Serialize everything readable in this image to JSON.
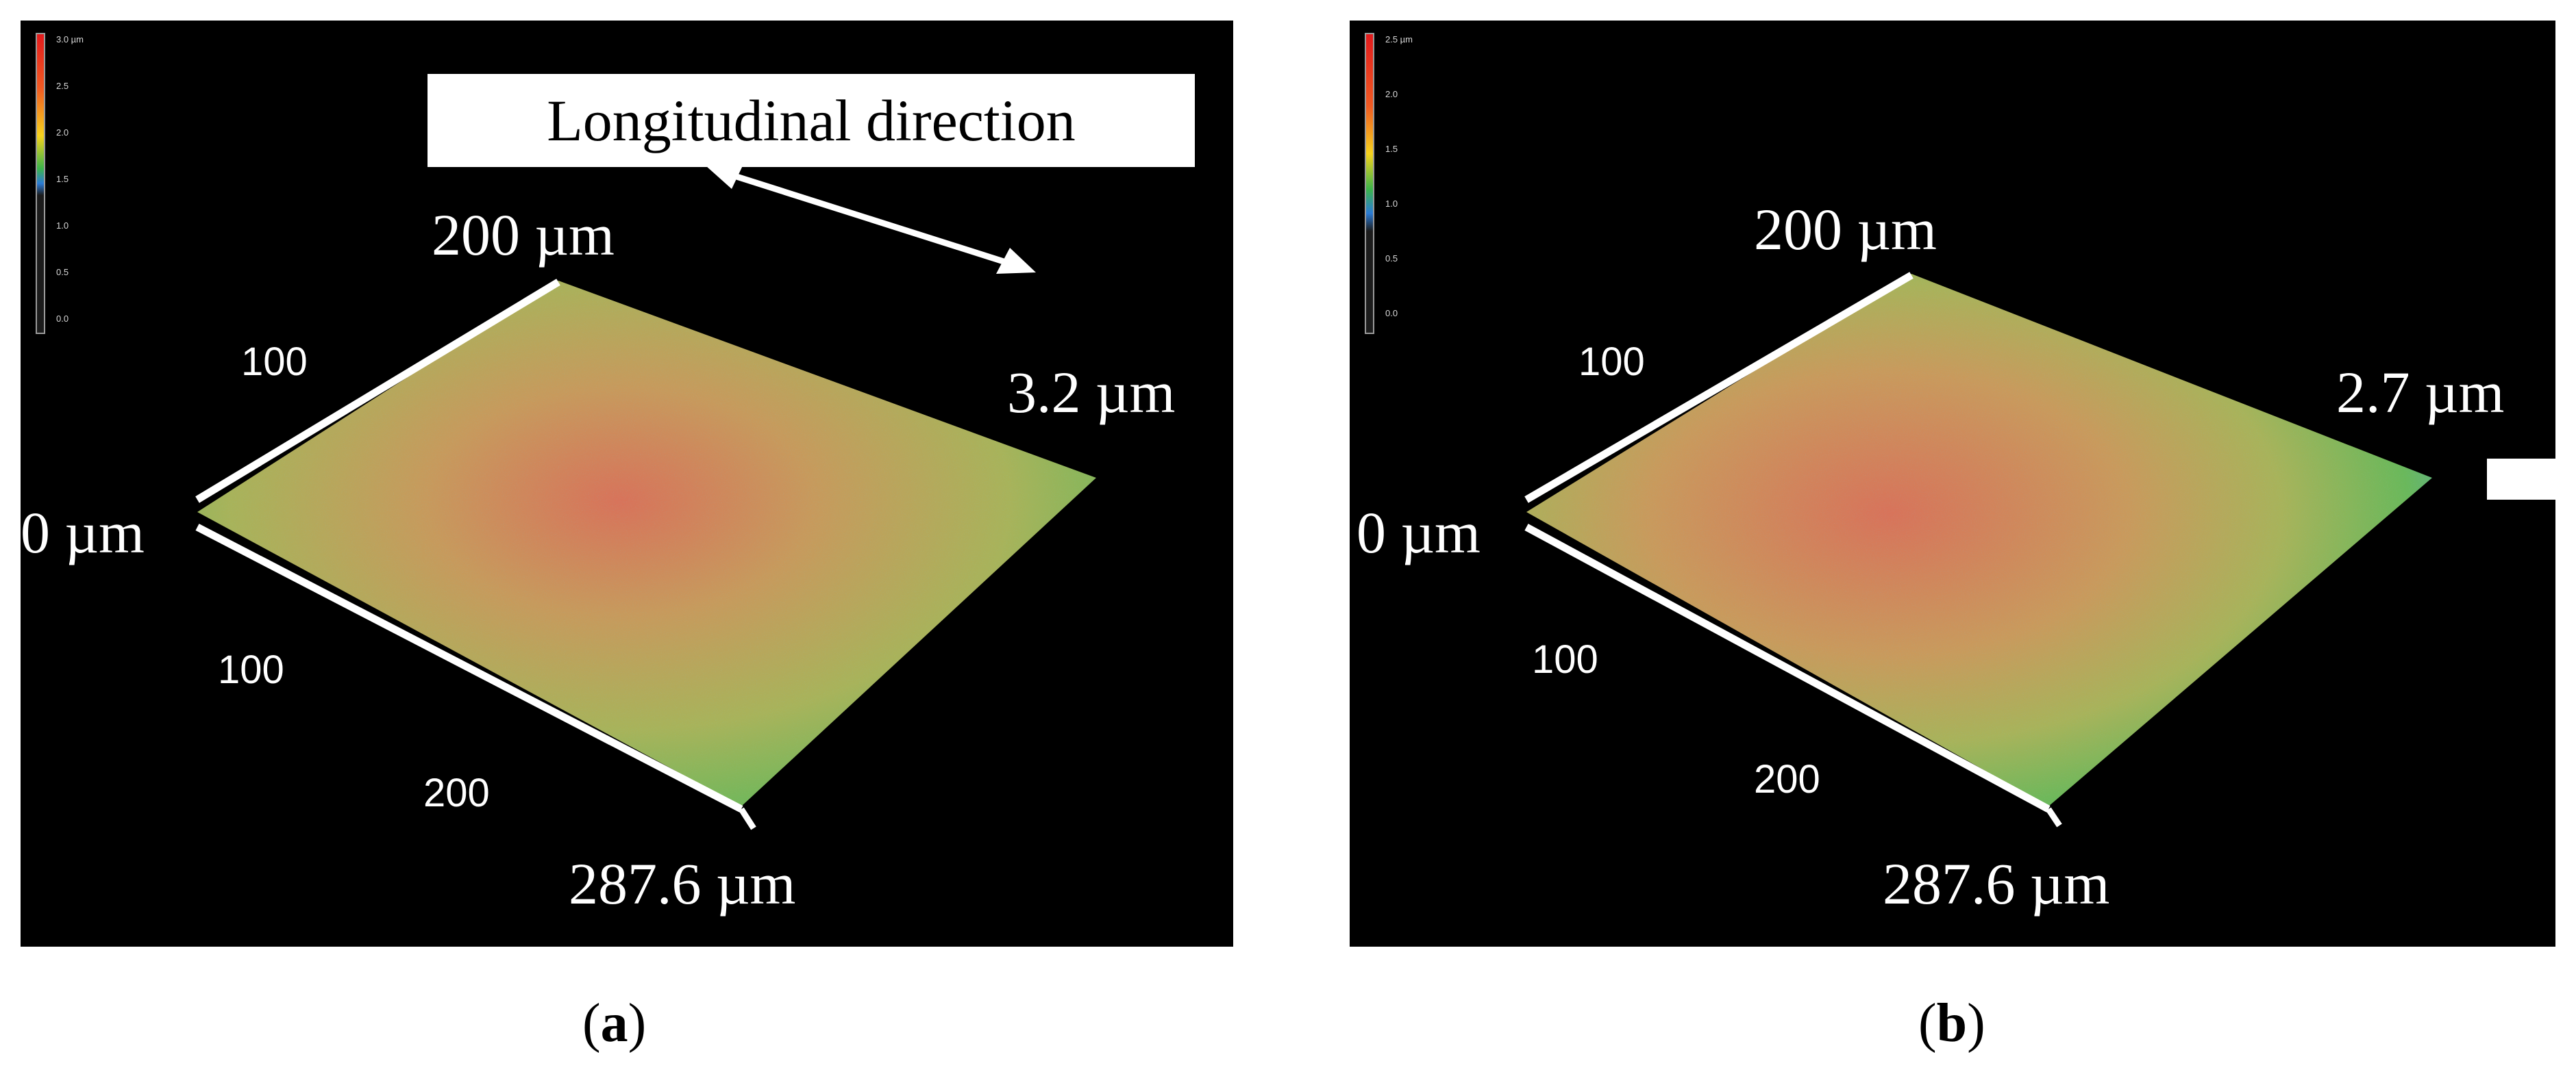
{
  "panels": [
    {
      "id": "a",
      "caption": "a",
      "annotation": "Longitudinal direction",
      "colorbar_ticks": [
        "3.0 µm",
        "2.5",
        "2.0",
        "1.5",
        "1.0",
        "0.5",
        "0.0"
      ],
      "height_label": "3.2 µm",
      "origin_label": "0 µm",
      "top_axis_end": "200 µm",
      "top_axis_tick": "100",
      "front_axis_ticks": [
        "100",
        "200"
      ],
      "front_axis_end": "287.6 µm"
    },
    {
      "id": "b",
      "caption": "b",
      "colorbar_ticks": [
        "2.5 µm",
        "2.0",
        "1.5",
        "1.0",
        "0.5",
        "0.0"
      ],
      "height_label": "2.7 µm",
      "origin_label": "0 µm",
      "top_axis_end": "200 µm",
      "top_axis_tick": "100",
      "front_axis_ticks": [
        "100",
        "200"
      ],
      "front_axis_end": "287.6 µm"
    }
  ],
  "colors": {
    "background": "#000000",
    "surface_center": "#d8735a",
    "surface_mid": "#b9a85a",
    "surface_edge": "#6ab85a",
    "surface_cool": "#4aa7c8"
  }
}
